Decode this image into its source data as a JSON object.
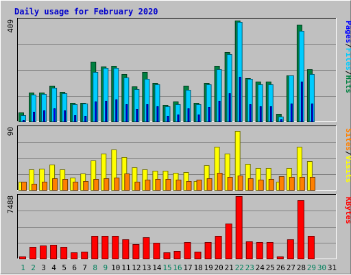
{
  "chart_data": {
    "type": "bar",
    "title": "Daily usage for February 2020",
    "categories": [
      "1",
      "2",
      "3",
      "4",
      "5",
      "6",
      "7",
      "8",
      "9",
      "10",
      "11",
      "12",
      "13",
      "14",
      "15",
      "16",
      "17",
      "18",
      "19",
      "20",
      "21",
      "22",
      "23",
      "24",
      "25",
      "26",
      "27",
      "28",
      "29",
      "30",
      "31"
    ],
    "weekend_days": [
      "1",
      "2",
      "8",
      "9",
      "15",
      "16",
      "22",
      "23",
      "29",
      "30"
    ],
    "panels": [
      {
        "id": "hits-files-pages",
        "max_label": "409",
        "ymax": 409,
        "ylabel": [
          "Pages",
          "Files",
          "Hits"
        ],
        "series": [
          {
            "name": "Hits",
            "color": "#008040",
            "values": [
              35,
              115,
              115,
              145,
              120,
              75,
              75,
              240,
              220,
              225,
              190,
              140,
              200,
              155,
              65,
              80,
              145,
              75,
              155,
              225,
              280,
              405,
              175,
              160,
              160,
              30,
              185,
              390,
              210,
              0,
              0
            ]
          },
          {
            "name": "Files",
            "color": "#00ccff",
            "values": [
              25,
              108,
              110,
              135,
              112,
              70,
              72,
              200,
              215,
              215,
              178,
              130,
              170,
              150,
              60,
              70,
              128,
              70,
              150,
              210,
              270,
              400,
              170,
              150,
              150,
              18,
              185,
              365,
              190,
              0,
              0
            ]
          },
          {
            "name": "Pages",
            "color": "#0000ff",
            "values": [
              5,
              40,
              44,
              52,
              44,
              24,
              22,
              80,
              82,
              88,
              70,
              50,
              68,
              60,
              22,
              28,
              52,
              28,
              58,
              84,
              112,
              180,
              70,
              62,
              62,
              8,
              72,
              160,
              72,
              0,
              0
            ]
          }
        ]
      },
      {
        "id": "visits-sites",
        "max_label": "90",
        "ymax": 90,
        "ylabel": [
          "Sites",
          "Visits"
        ],
        "series": [
          {
            "name": "Visits",
            "color": "#ffff00",
            "values": [
              12,
              30,
              31,
              37,
              30,
              18,
              24,
              43,
              52,
              58,
              47,
              33,
              30,
              28,
              28,
              25,
              26,
              13,
              36,
              62,
              52,
              85,
              38,
              32,
              32,
              12,
              32,
              62,
              42,
              0,
              0
            ]
          },
          {
            "name": "Sites",
            "color": "#ff8000",
            "values": [
              12,
              9,
              12,
              17,
              16,
              12,
              13,
              16,
              17,
              18,
              24,
              12,
              15,
              16,
              16,
              15,
              13,
              15,
              17,
              25,
              19,
              21,
              17,
              15,
              16,
              20,
              19,
              19,
              19,
              0,
              0
            ]
          }
        ]
      },
      {
        "id": "kbytes",
        "max_label": "7488",
        "ymax": 7488,
        "ylabel": [
          "KBytes"
        ],
        "series": [
          {
            "name": "KBytes",
            "color": "#ff0000",
            "values": [
              280,
              1380,
              1530,
              1620,
              1400,
              780,
              820,
              2730,
              2730,
              2730,
              2310,
              1750,
              2530,
              1860,
              720,
              930,
              1940,
              820,
              2000,
              2700,
              4220,
              7488,
              2030,
              1980,
              1980,
              210,
              2300,
              7000,
              2730,
              0,
              0
            ]
          }
        ]
      }
    ]
  },
  "colors": {
    "background": "#c0c0c0",
    "plot_background": "#c0c0c0",
    "title": "#0000cc",
    "gridline": "#808080",
    "weekday_label": "#000000",
    "weekend_label": "#00805c"
  }
}
